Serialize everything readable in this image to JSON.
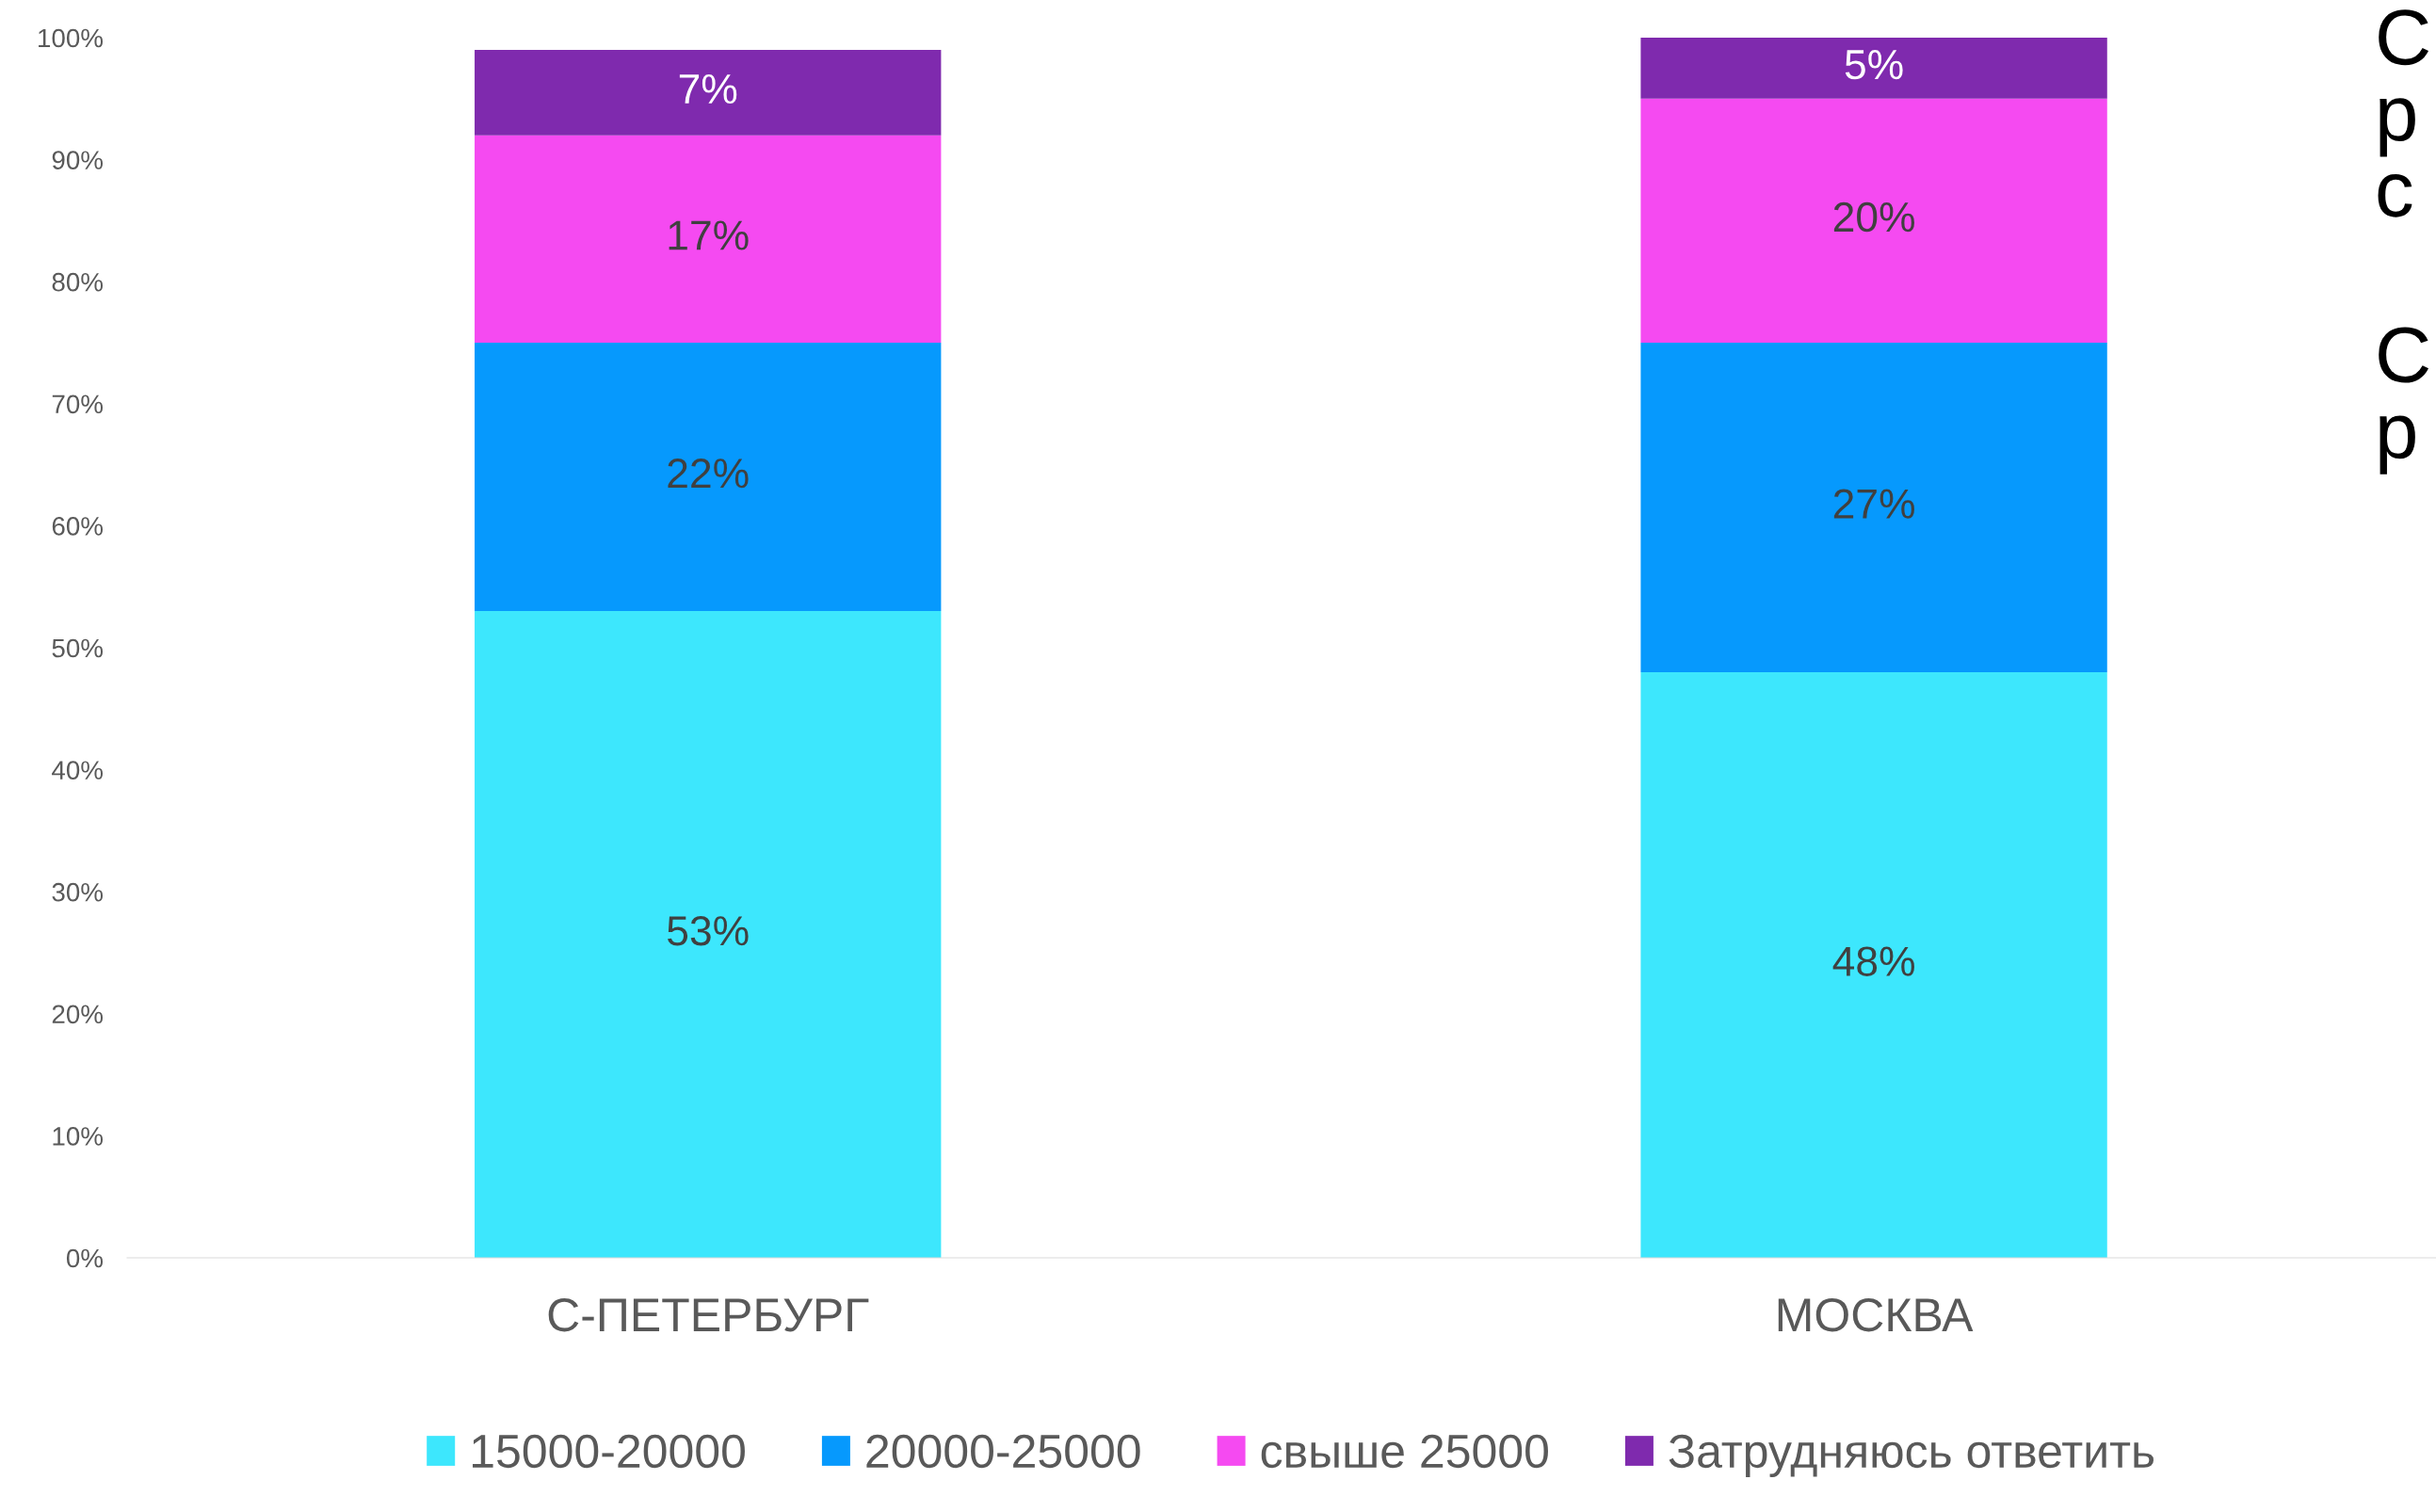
{
  "chart_data": {
    "type": "bar",
    "stacked": true,
    "categories": [
      "С-ПЕТЕРБУРГ",
      "МОСКВА"
    ],
    "series": [
      {
        "name": "15000-20000",
        "color": "#3de7fd",
        "values": [
          53,
          48
        ]
      },
      {
        "name": "20000-25000",
        "color": "#0699fd",
        "values": [
          22,
          27
        ]
      },
      {
        "name": "свыше 25000",
        "color": "#f54af1",
        "values": [
          17,
          20
        ]
      },
      {
        "name": "Затрудняюсь ответить",
        "color": "#7f2aae",
        "values": [
          7,
          5
        ]
      }
    ],
    "ylim": [
      0,
      100
    ],
    "yticks": [
      {
        "value": 0,
        "label": "0%"
      },
      {
        "value": 10,
        "label": "10%"
      },
      {
        "value": 20,
        "label": "20%"
      },
      {
        "value": 30,
        "label": "30%"
      },
      {
        "value": 40,
        "label": "40%"
      },
      {
        "value": 50,
        "label": "50%"
      },
      {
        "value": 60,
        "label": "60%"
      },
      {
        "value": 70,
        "label": "70%"
      },
      {
        "value": 80,
        "label": "80%"
      },
      {
        "value": 90,
        "label": "90%"
      },
      {
        "value": 100,
        "label": "100%"
      }
    ],
    "value_labels": [
      [
        "53%",
        "48%"
      ],
      [
        "22%",
        "27%"
      ],
      [
        "17%",
        "20%"
      ],
      [
        "7%",
        "5%"
      ]
    ],
    "grid": false,
    "legend": "bottom",
    "annotations": [
      "С\nр\nс",
      "С\nр"
    ]
  }
}
